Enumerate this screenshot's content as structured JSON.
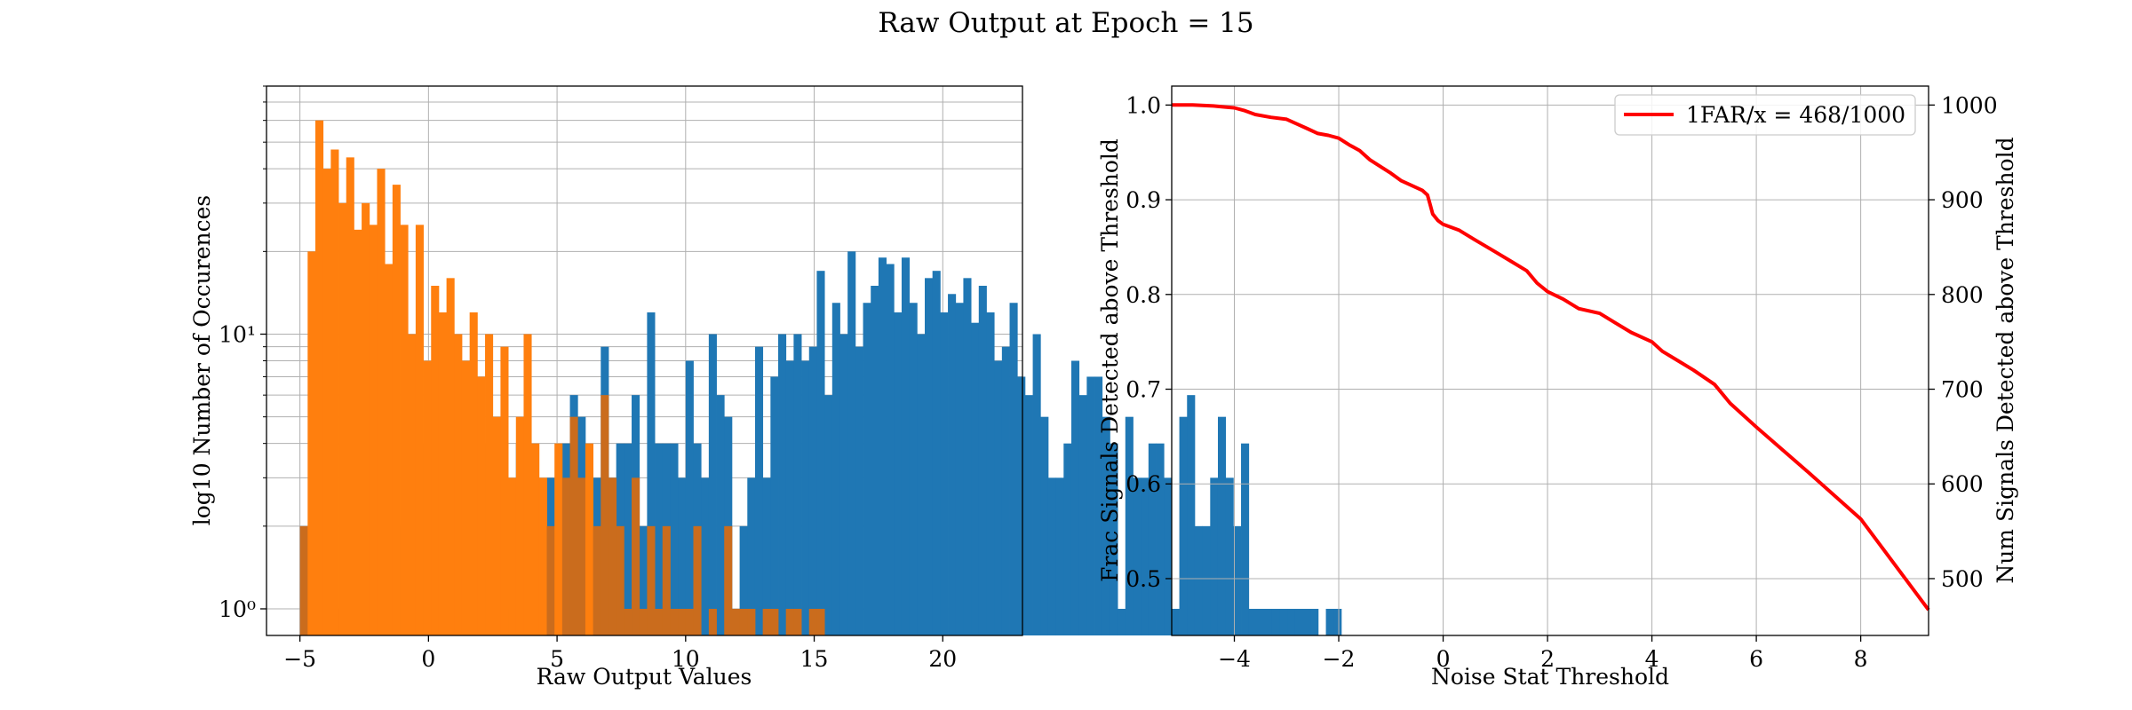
{
  "figure": {
    "suptitle": "Raw Output at Epoch = 15"
  },
  "chart_data": [
    {
      "type": "bar",
      "subtype": "histogram",
      "xlabel": "Raw Output Values",
      "ylabel": "log10 Number of Occurences",
      "xlim": [
        -6.3,
        23.1
      ],
      "ylim": [
        0.8,
        80
      ],
      "yscale": "log",
      "grid": true,
      "xticks": [
        -5,
        0,
        5,
        10,
        15,
        20
      ],
      "yticks": [
        {
          "value": 1,
          "label": "10⁰"
        },
        {
          "value": 10,
          "label": "10¹"
        }
      ],
      "bin_width": 0.3,
      "series": [
        {
          "color": "#1f77b4",
          "bin_start": -5.0,
          "counts": [
            2,
            2,
            2,
            2,
            1,
            0,
            1,
            2,
            1,
            1,
            3,
            1,
            1,
            2,
            2,
            4,
            3,
            1,
            2,
            3,
            3,
            4,
            5,
            4,
            3,
            3,
            1,
            1,
            4,
            4,
            2,
            1,
            3,
            2,
            4,
            6,
            5,
            2,
            3,
            9,
            3,
            4,
            4,
            6,
            2,
            12,
            4,
            4,
            4,
            3,
            8,
            4,
            3,
            10,
            6,
            5,
            1,
            2,
            3,
            9,
            3,
            7,
            10,
            8,
            10,
            8,
            9,
            17,
            6,
            13,
            10,
            20,
            9,
            13,
            15,
            19,
            18,
            12,
            19,
            13,
            10,
            16,
            17,
            12,
            14,
            13,
            16,
            11,
            15,
            12,
            8,
            9,
            13,
            7,
            6,
            10,
            5,
            3,
            3,
            4,
            8,
            6,
            7,
            7,
            5,
            4,
            1,
            5,
            3,
            3,
            4,
            4,
            3,
            1,
            5,
            6,
            2,
            2,
            3,
            5,
            3,
            2,
            4,
            1,
            1,
            1,
            1,
            1,
            1,
            1,
            1,
            1,
            0,
            1,
            1
          ],
          "overlay_color": "#ca6c1d"
        },
        {
          "color": "#ff7f0e",
          "bin_start": -5.0,
          "counts": [
            2,
            20,
            60,
            40,
            47,
            30,
            44,
            24,
            30,
            25,
            40,
            18,
            35,
            25,
            10,
            25,
            8,
            15,
            12,
            16,
            10,
            8,
            12,
            7,
            10,
            5,
            9,
            3,
            5,
            10,
            4,
            3,
            2,
            4,
            3,
            5,
            3,
            4,
            2,
            6,
            3,
            2,
            1,
            3,
            1,
            2,
            1,
            2,
            1,
            1,
            1,
            2,
            0,
            1,
            0,
            2,
            1,
            1,
            1,
            0,
            1,
            1,
            0,
            1,
            1,
            0,
            1,
            1
          ]
        }
      ]
    },
    {
      "type": "line",
      "xlabel": "Noise Stat Threshold",
      "ylabel": "Frac Signals Detected above Threshold",
      "ylabel_right": "Num Signals Detected above Threshold",
      "xlim": [
        -5.2,
        9.3
      ],
      "ylim": [
        0.44,
        1.02
      ],
      "xticks": [
        -4,
        -2,
        0,
        2,
        4,
        6,
        8
      ],
      "yticks": [
        0.5,
        0.6,
        0.7,
        0.8,
        0.9,
        1.0
      ],
      "yticks_right": [
        500,
        600,
        700,
        800,
        900,
        1000
      ],
      "grid": true,
      "legend_position": "upper right",
      "series": [
        {
          "name": "1FAR/x = 468/1000",
          "color": "#ff0000",
          "x": [
            -5.2,
            -4.8,
            -4.4,
            -4.2,
            -4.0,
            -3.8,
            -3.6,
            -3.3,
            -3.0,
            -2.8,
            -2.6,
            -2.4,
            -2.2,
            -2.0,
            -1.8,
            -1.6,
            -1.4,
            -1.2,
            -1.0,
            -0.8,
            -0.6,
            -0.4,
            -0.3,
            -0.25,
            -0.2,
            -0.1,
            0.0,
            0.3,
            0.6,
            1.0,
            1.3,
            1.6,
            1.8,
            2.0,
            2.3,
            2.6,
            3.0,
            3.3,
            3.6,
            4.0,
            4.2,
            4.5,
            4.8,
            5.2,
            5.5,
            6.0,
            7.0,
            8.0,
            9.3
          ],
          "y": [
            1.0,
            1.0,
            0.999,
            0.998,
            0.997,
            0.994,
            0.99,
            0.987,
            0.985,
            0.98,
            0.975,
            0.97,
            0.968,
            0.965,
            0.958,
            0.952,
            0.942,
            0.935,
            0.928,
            0.92,
            0.915,
            0.91,
            0.905,
            0.895,
            0.885,
            0.878,
            0.874,
            0.868,
            0.858,
            0.845,
            0.835,
            0.825,
            0.812,
            0.803,
            0.795,
            0.785,
            0.78,
            0.77,
            0.76,
            0.75,
            0.74,
            0.73,
            0.72,
            0.705,
            0.685,
            0.66,
            0.612,
            0.563,
            0.467
          ]
        }
      ]
    }
  ]
}
